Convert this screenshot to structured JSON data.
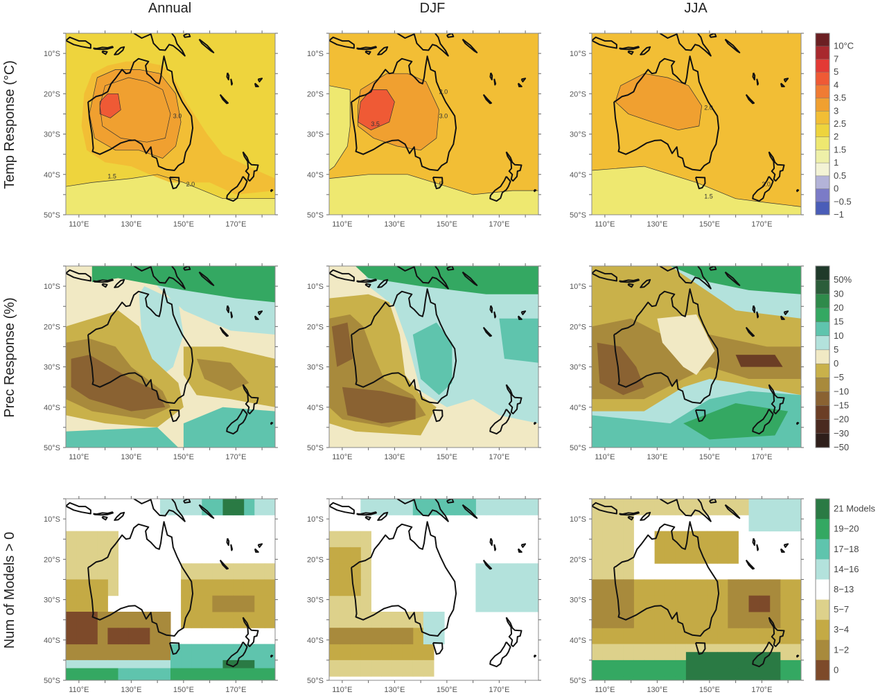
{
  "chart_data": {
    "type": "heatmap",
    "column_titles": [
      "Annual",
      "DJF",
      "JJA"
    ],
    "row_titles": [
      "Temp Response (°C)",
      "Prec Response (%)",
      "Num of Models > 0"
    ],
    "x_ticks": [
      "110°E",
      "130°E",
      "150°E",
      "170°E"
    ],
    "y_ticks": [
      "10°S",
      "20°S",
      "30°S",
      "40°S",
      "50°S"
    ],
    "xlim": [
      105,
      185
    ],
    "ylim": [
      -50,
      -5
    ],
    "colorbars": [
      {
        "labels": [
          "10°C",
          "7",
          "5",
          "4",
          "3.5",
          "3",
          "2.5",
          "2",
          "1.5",
          "1",
          "0.5",
          "0",
          "−0.5",
          "−1"
        ],
        "colors": [
          "#6b1f22",
          "#a8292e",
          "#e33a35",
          "#ef5a35",
          "#f07b33",
          "#f0a030",
          "#f2be35",
          "#eed43d",
          "#eee870",
          "#eef0a8",
          "#f3f3d5",
          "#b3b3d8",
          "#7b7bc7",
          "#4a5db8"
        ]
      },
      {
        "labels": [
          "50%",
          "30",
          "20",
          "15",
          "10",
          "5",
          "0",
          "−5",
          "−10",
          "−15",
          "−20",
          "−30",
          "−50"
        ],
        "colors": [
          "#1f3a2a",
          "#2b5d3a",
          "#2e8a4a",
          "#34a862",
          "#5fc4ad",
          "#b3e2dc",
          "#f1e9c4",
          "#c9b14a",
          "#a88a3c",
          "#8a6232",
          "#6b3e25",
          "#4a2a20",
          "#2e1e1a"
        ]
      },
      {
        "labels": [
          "21 Models",
          "19−20",
          "17−18",
          "14−16",
          "8−13",
          "5−7",
          "3−4",
          "1−2",
          "0"
        ],
        "colors": [
          "#2a7a44",
          "#34a862",
          "#5fc4ad",
          "#b3e2dc",
          "#ffffff",
          "#ddd18b",
          "#c4aa45",
          "#a88a3c",
          "#7d4a2a"
        ]
      }
    ],
    "contour_labels": {
      "temp_annual": [
        "1.5",
        "2.0",
        "3.0"
      ],
      "temp_djf": [
        "1.5",
        "2.0",
        "3.0",
        "3.5"
      ],
      "temp_jja": [
        "1.5",
        "2.0",
        "3.0"
      ]
    }
  }
}
